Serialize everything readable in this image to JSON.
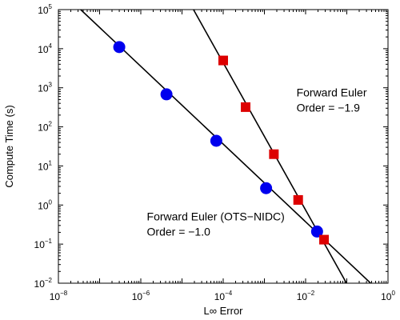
{
  "chart_data": {
    "type": "scatter",
    "xscale": "log",
    "yscale": "log",
    "xlim": [
      1e-08,
      1
    ],
    "ylim": [
      0.01,
      100000
    ],
    "xlabel": "L∞ Error",
    "ylabel": "Compute Time (s)",
    "x_ticks": [
      {
        "base": "10",
        "exp": "−8",
        "value": 1e-08
      },
      {
        "base": "10",
        "exp": "−6",
        "value": 1e-06
      },
      {
        "base": "10",
        "exp": "−4",
        "value": 0.0001
      },
      {
        "base": "10",
        "exp": "−2",
        "value": 0.01
      },
      {
        "base": "10",
        "exp": "0",
        "value": 1
      }
    ],
    "y_ticks": [
      {
        "base": "10",
        "exp": "−2",
        "value": 0.01
      },
      {
        "base": "10",
        "exp": "−1",
        "value": 0.1
      },
      {
        "base": "10",
        "exp": "0",
        "value": 1
      },
      {
        "base": "10",
        "exp": "1",
        "value": 10
      },
      {
        "base": "10",
        "exp": "2",
        "value": 100
      },
      {
        "base": "10",
        "exp": "3",
        "value": 1000
      },
      {
        "base": "10",
        "exp": "4",
        "value": 10000
      },
      {
        "base": "10",
        "exp": "5",
        "value": 100000
      }
    ],
    "series": [
      {
        "marker": "circle",
        "color": "#0000ee",
        "points": [
          {
            "x": 3e-07,
            "y": 11000
          },
          {
            "x": 4.2e-06,
            "y": 680
          },
          {
            "x": 6.8e-05,
            "y": 44
          },
          {
            "x": 0.0011,
            "y": 2.7
          },
          {
            "x": 0.019,
            "y": 0.21
          }
        ],
        "fit": {
          "x": [
            1.5e-08,
            0.4
          ],
          "y": [
            230000,
            0.0095
          ]
        }
      },
      {
        "marker": "square",
        "color": "#dd0000",
        "points": [
          {
            "x": 0.0001,
            "y": 5000
          },
          {
            "x": 0.00035,
            "y": 320
          },
          {
            "x": 0.0017,
            "y": 20
          },
          {
            "x": 0.0066,
            "y": 1.35
          },
          {
            "x": 0.028,
            "y": 0.13
          }
        ],
        "fit": {
          "x": [
            1.9e-05,
            0.1
          ],
          "y": [
            100000,
            0.0097
          ]
        }
      }
    ],
    "annotations": [
      {
        "lines": [
          "Forward Euler",
          "Order = −1.9"
        ],
        "x": 0.006,
        "y": 600
      },
      {
        "lines": [
          "Forward Euler (OTS−NIDC)",
          "Order = −1.0"
        ],
        "x": 1.4e-06,
        "y": 0.4
      }
    ]
  }
}
